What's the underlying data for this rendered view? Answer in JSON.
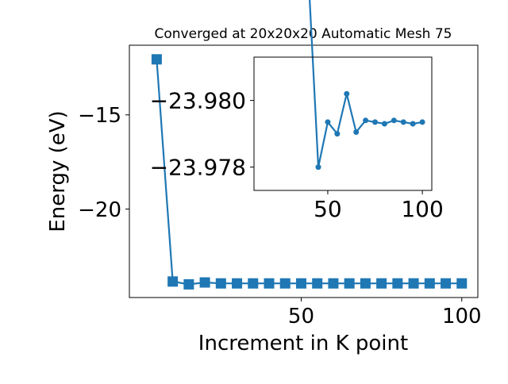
{
  "chart_data": [
    {
      "type": "line",
      "title": "Converged at 20x20x20 Automatic Mesh 75",
      "xlabel": "Increment in K point",
      "ylabel": "Energy (eV)",
      "xlim": [
        -3.5,
        105
      ],
      "ylim": [
        -24.7,
        -11.3
      ],
      "xticks": [
        50,
        100
      ],
      "yticks": [
        -15,
        -20
      ],
      "grid": false,
      "color": "#1f77b4",
      "marker": "square",
      "series": [
        {
          "x": [
            5,
            10,
            15,
            20,
            25,
            30,
            35,
            40,
            45,
            50,
            55,
            60,
            65,
            70,
            75,
            80,
            85,
            90,
            95,
            100
          ],
          "y": [
            -12.05,
            -23.85,
            -24.0,
            -23.9,
            -23.95,
            -23.95,
            -23.95,
            -23.95,
            -23.95,
            -23.95,
            -23.95,
            -23.95,
            -23.95,
            -23.95,
            -23.95,
            -23.95,
            -23.95,
            -23.95,
            -23.95,
            -23.95
          ]
        }
      ]
    },
    {
      "type": "line",
      "title": "",
      "xlabel": "",
      "ylabel": "",
      "xlim": [
        11,
        105
      ],
      "ylim": [
        -23.9773,
        -23.9813
      ],
      "xticks": [
        50,
        100
      ],
      "yticks": [
        -23.98,
        -23.978
      ],
      "ytick_labels": [
        "−23.980",
        "−23.978"
      ],
      "grid": false,
      "color": "#1f77b4",
      "marker": "circle",
      "series": [
        {
          "x": [
            40,
            45,
            50,
            55,
            60,
            65,
            70,
            75,
            80,
            85,
            90,
            95,
            100
          ],
          "y": [
            -23.9835,
            -23.978,
            -23.97935,
            -23.979,
            -23.9802,
            -23.97905,
            -23.9794,
            -23.97935,
            -23.9793,
            -23.9794,
            -23.97935,
            -23.9793,
            -23.97935
          ]
        }
      ]
    }
  ]
}
